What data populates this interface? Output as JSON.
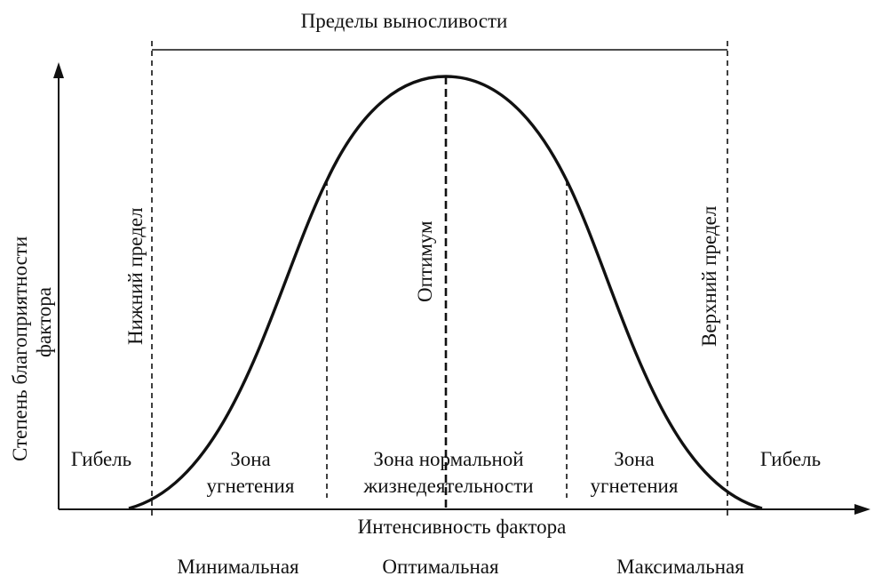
{
  "header": {
    "tolerance_limits": "Пределы выносливости"
  },
  "axes": {
    "y_label_line1": "Степень благоприятности",
    "y_label_line2": "фактора",
    "x_label": "Интенсивность фактора"
  },
  "vertical_labels": {
    "lower_limit": "Нижний предел",
    "optimum": "Оптимум",
    "upper_limit": "Верхний предел"
  },
  "zones": {
    "death_left": "Гибель",
    "oppression_left_line1": "Зона",
    "oppression_left_line2": "угнетения",
    "normal_line1": "Зона нормальной",
    "normal_line2": "жизнедеятельности",
    "oppression_right_line1": "Зона",
    "oppression_right_line2": "угнетения",
    "death_right": "Гибель"
  },
  "bottom_labels": {
    "minimal": "Минимальная",
    "optimal": "Оптимальная",
    "maximal": "Максимальная"
  }
}
